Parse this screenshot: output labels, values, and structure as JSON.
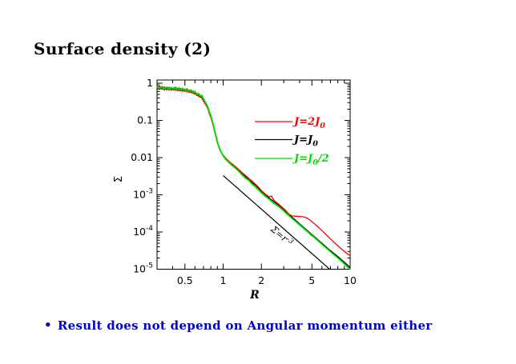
{
  "slide": {
    "title": "Surface density (2)",
    "bullet_marker": "•",
    "bullet_text": "Result does not depend on Angular momentum either",
    "colors": {
      "title": "#000000",
      "bullet": "#0000cc"
    }
  },
  "chart_data": {
    "type": "line",
    "title": "",
    "xlabel": "R",
    "ylabel": "Σ",
    "xscale": "log",
    "yscale": "log",
    "xlim": [
      0.3,
      10
    ],
    "ylim": [
      1e-05,
      1
    ],
    "grid": false,
    "legend_position": "upper right inside",
    "axis_color": "#000000",
    "x_ticks": {
      "labeled": [
        0.5,
        1,
        2,
        5,
        10
      ],
      "labels": [
        "0.5",
        "1",
        "2",
        "5",
        "10"
      ],
      "minor": [
        0.4,
        0.6,
        0.7,
        0.8,
        0.9,
        3,
        4,
        6,
        7,
        8,
        9
      ]
    },
    "y_ticks": {
      "decades": [
        1,
        0.1,
        0.01,
        0.001,
        0.0001,
        1e-05
      ],
      "labels": [
        {
          "t": "1"
        },
        {
          "t": "0.1"
        },
        {
          "t": "0.01"
        },
        {
          "b": "10",
          "e": "-3"
        },
        {
          "b": "10",
          "e": "-4"
        },
        {
          "b": "10",
          "e": "-5"
        }
      ],
      "minor_multiples": [
        2,
        3,
        4,
        5,
        6,
        7,
        8,
        9
      ]
    },
    "legend": [
      {
        "pre": "J=2J",
        "sub": "0",
        "post": "",
        "color": "#ff0000"
      },
      {
        "pre": "J=J",
        "sub": "0",
        "post": "",
        "color": "#000000"
      },
      {
        "pre": "J=J",
        "sub": "0",
        "post": "/2",
        "color": "#00dd00"
      }
    ],
    "annotation": {
      "pre": "Σ=r",
      "exp": "-3",
      "color": "#000000"
    },
    "reference_line": {
      "slope": -3,
      "color": "#000000",
      "points": [
        [
          1,
          0.0033
        ],
        [
          6.95,
          9.8e-06
        ]
      ]
    },
    "series": [
      {
        "name": "J=2J0",
        "color": "#ff0000",
        "points": [
          [
            0.3,
            0.74
          ],
          [
            0.315,
            0.84
          ],
          [
            0.33,
            0.68
          ],
          [
            0.345,
            0.8
          ],
          [
            0.36,
            0.66
          ],
          [
            0.375,
            0.78
          ],
          [
            0.39,
            0.65
          ],
          [
            0.405,
            0.75
          ],
          [
            0.42,
            0.64
          ],
          [
            0.435,
            0.74
          ],
          [
            0.45,
            0.62
          ],
          [
            0.465,
            0.73
          ],
          [
            0.48,
            0.6
          ],
          [
            0.5,
            0.7
          ],
          [
            0.52,
            0.58
          ],
          [
            0.54,
            0.66
          ],
          [
            0.56,
            0.55
          ],
          [
            0.58,
            0.61
          ],
          [
            0.6,
            0.5
          ],
          [
            0.62,
            0.54
          ],
          [
            0.64,
            0.44
          ],
          [
            0.66,
            0.47
          ],
          [
            0.68,
            0.39
          ],
          [
            0.7,
            0.33
          ],
          [
            0.72,
            0.28
          ],
          [
            0.74,
            0.24
          ],
          [
            0.76,
            0.2
          ],
          [
            0.78,
            0.15
          ],
          [
            0.8,
            0.12
          ],
          [
            0.82,
            0.09
          ],
          [
            0.84,
            0.066
          ],
          [
            0.86,
            0.047
          ],
          [
            0.88,
            0.034
          ],
          [
            0.9,
            0.025
          ],
          [
            0.93,
            0.0185
          ],
          [
            0.96,
            0.0142
          ],
          [
            1.0,
            0.0118
          ],
          [
            1.05,
            0.0095
          ],
          [
            1.1,
            0.0082
          ],
          [
            1.15,
            0.0072
          ],
          [
            1.2,
            0.0064
          ],
          [
            1.3,
            0.0051
          ],
          [
            1.4,
            0.004
          ],
          [
            1.5,
            0.0033
          ],
          [
            1.6,
            0.0027
          ],
          [
            1.7,
            0.0023
          ],
          [
            1.8,
            0.0019
          ],
          [
            1.9,
            0.0016
          ],
          [
            2.0,
            0.0013
          ],
          [
            2.15,
            0.00104
          ],
          [
            2.3,
            0.00088
          ],
          [
            2.4,
            0.00093
          ],
          [
            2.5,
            0.00072
          ],
          [
            2.7,
            0.00058
          ],
          [
            2.9,
            0.00047
          ],
          [
            3.1,
            0.00038
          ],
          [
            3.3,
            0.0003
          ],
          [
            3.5,
            0.00027
          ],
          [
            3.8,
            0.000265
          ],
          [
            4.1,
            0.00026
          ],
          [
            4.4,
            0.00025
          ],
          [
            4.7,
            0.000225
          ],
          [
            5.0,
            0.00019
          ],
          [
            5.4,
            0.000152
          ],
          [
            5.9,
            0.000115
          ],
          [
            6.4,
            8.8e-05
          ],
          [
            7.0,
            6.5e-05
          ],
          [
            7.6,
            5e-05
          ],
          [
            8.3,
            3.8e-05
          ],
          [
            9.0,
            3e-05
          ],
          [
            9.5,
            2.6e-05
          ],
          [
            10,
            2.3e-05
          ]
        ]
      },
      {
        "name": "J=J0",
        "color": "#000000",
        "points": [
          [
            0.3,
            0.8
          ],
          [
            0.315,
            0.68
          ],
          [
            0.33,
            0.78
          ],
          [
            0.345,
            0.66
          ],
          [
            0.36,
            0.75
          ],
          [
            0.375,
            0.65
          ],
          [
            0.39,
            0.74
          ],
          [
            0.405,
            0.66
          ],
          [
            0.42,
            0.76
          ],
          [
            0.435,
            0.63
          ],
          [
            0.45,
            0.72
          ],
          [
            0.465,
            0.62
          ],
          [
            0.48,
            0.7
          ],
          [
            0.5,
            0.6
          ],
          [
            0.52,
            0.68
          ],
          [
            0.54,
            0.57
          ],
          [
            0.56,
            0.63
          ],
          [
            0.58,
            0.53
          ],
          [
            0.6,
            0.57
          ],
          [
            0.62,
            0.47
          ],
          [
            0.64,
            0.5
          ],
          [
            0.66,
            0.42
          ],
          [
            0.68,
            0.44
          ],
          [
            0.7,
            0.36
          ],
          [
            0.72,
            0.3
          ],
          [
            0.74,
            0.26
          ],
          [
            0.76,
            0.21
          ],
          [
            0.78,
            0.165
          ],
          [
            0.8,
            0.13
          ],
          [
            0.82,
            0.095
          ],
          [
            0.84,
            0.07
          ],
          [
            0.86,
            0.05
          ],
          [
            0.88,
            0.036
          ],
          [
            0.9,
            0.026
          ],
          [
            0.93,
            0.018
          ],
          [
            0.96,
            0.014
          ],
          [
            1.0,
            0.0115
          ],
          [
            1.05,
            0.0092
          ],
          [
            1.1,
            0.008
          ],
          [
            1.15,
            0.0069
          ],
          [
            1.2,
            0.0061
          ],
          [
            1.3,
            0.0049
          ],
          [
            1.4,
            0.0038
          ],
          [
            1.5,
            0.0031
          ],
          [
            1.6,
            0.0026
          ],
          [
            1.7,
            0.0021
          ],
          [
            1.8,
            0.0018
          ],
          [
            1.9,
            0.0015
          ],
          [
            2.0,
            0.00125
          ],
          [
            2.15,
            0.001
          ],
          [
            2.3,
            0.00083
          ],
          [
            2.5,
            0.00066
          ],
          [
            2.7,
            0.00054
          ],
          [
            2.9,
            0.00044
          ],
          [
            3.1,
            0.00036
          ],
          [
            3.4,
            0.00027
          ],
          [
            3.7,
            0.00021
          ],
          [
            4.0,
            0.000165
          ],
          [
            4.4,
            0.000125
          ],
          [
            4.8,
            9.6e-05
          ],
          [
            5.2,
            7.6e-05
          ],
          [
            5.7,
            5.8e-05
          ],
          [
            6.2,
            4.5e-05
          ],
          [
            6.8,
            3.4e-05
          ],
          [
            7.4,
            2.7e-05
          ],
          [
            8.0,
            2.2e-05
          ],
          [
            8.7,
            1.7e-05
          ],
          [
            9.4,
            1.35e-05
          ],
          [
            10,
            1.1e-05
          ]
        ]
      },
      {
        "name": "J=J0/2",
        "color": "#00dd00",
        "points": [
          [
            0.3,
            0.78
          ],
          [
            0.315,
            0.72
          ],
          [
            0.33,
            0.82
          ],
          [
            0.345,
            0.7
          ],
          [
            0.36,
            0.79
          ],
          [
            0.375,
            0.68
          ],
          [
            0.39,
            0.77
          ],
          [
            0.405,
            0.7
          ],
          [
            0.42,
            0.79
          ],
          [
            0.435,
            0.67
          ],
          [
            0.45,
            0.75
          ],
          [
            0.465,
            0.65
          ],
          [
            0.48,
            0.73
          ],
          [
            0.5,
            0.63
          ],
          [
            0.52,
            0.71
          ],
          [
            0.54,
            0.6
          ],
          [
            0.56,
            0.66
          ],
          [
            0.58,
            0.56
          ],
          [
            0.6,
            0.6
          ],
          [
            0.62,
            0.5
          ],
          [
            0.64,
            0.53
          ],
          [
            0.66,
            0.45
          ],
          [
            0.68,
            0.47
          ],
          [
            0.7,
            0.38
          ],
          [
            0.72,
            0.32
          ],
          [
            0.74,
            0.27
          ],
          [
            0.76,
            0.22
          ],
          [
            0.78,
            0.17
          ],
          [
            0.8,
            0.135
          ],
          [
            0.82,
            0.1
          ],
          [
            0.84,
            0.073
          ],
          [
            0.86,
            0.052
          ],
          [
            0.88,
            0.037
          ],
          [
            0.9,
            0.027
          ],
          [
            0.93,
            0.019
          ],
          [
            0.96,
            0.0145
          ],
          [
            1.0,
            0.0112
          ],
          [
            1.05,
            0.0088
          ],
          [
            1.1,
            0.0076
          ],
          [
            1.15,
            0.0066
          ],
          [
            1.2,
            0.0058
          ],
          [
            1.3,
            0.0046
          ],
          [
            1.4,
            0.0035
          ],
          [
            1.5,
            0.0028
          ],
          [
            1.6,
            0.0024
          ],
          [
            1.7,
            0.0019
          ],
          [
            1.8,
            0.0016
          ],
          [
            1.9,
            0.00135
          ],
          [
            2.0,
            0.00113
          ],
          [
            2.15,
            0.00091
          ],
          [
            2.3,
            0.00076
          ],
          [
            2.5,
            0.0006
          ],
          [
            2.7,
            0.0005
          ],
          [
            2.9,
            0.00041
          ],
          [
            3.1,
            0.00033
          ],
          [
            3.4,
            0.00025
          ],
          [
            3.7,
            0.000195
          ],
          [
            4.0,
            0.000155
          ],
          [
            4.4,
            0.000118
          ],
          [
            4.8,
            9e-05
          ],
          [
            5.2,
            7.2e-05
          ],
          [
            5.7,
            5.5e-05
          ],
          [
            6.2,
            4.2e-05
          ],
          [
            6.8,
            3.2e-05
          ],
          [
            7.4,
            2.5e-05
          ],
          [
            8.0,
            2e-05
          ],
          [
            8.7,
            1.55e-05
          ],
          [
            9.4,
            1.2e-05
          ],
          [
            10,
            1e-05
          ]
        ]
      }
    ]
  }
}
